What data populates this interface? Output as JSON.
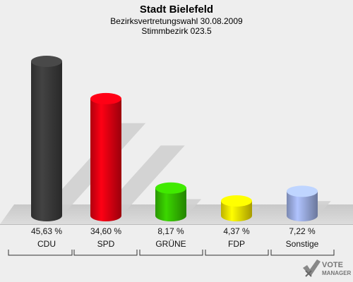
{
  "header": {
    "title": "Stadt Bielefeld",
    "subtitle": "Bezirksvertretungswahl 30.08.2009",
    "subtitle2": "Stimmbezirk 023.5"
  },
  "logo": {
    "text_top": "VOTE",
    "text_bottom": "MANAGER"
  },
  "chart_data": {
    "type": "bar",
    "style": "3d-cylinder",
    "title": "Stadt Bielefeld",
    "subtitle": "Bezirksvertretungswahl 30.08.2009 / Stimmbezirk 023.5",
    "categories": [
      "CDU",
      "SPD",
      "GRÜNE",
      "FDP",
      "Sonstige"
    ],
    "values": [
      45.63,
      34.6,
      8.17,
      4.37,
      7.22
    ],
    "value_labels": [
      "45,63 %",
      "34,60 %",
      "8,17 %",
      "4,37 %",
      "7,22 %"
    ],
    "colors": [
      "#3a3a3a",
      "#dd0011",
      "#33bb00",
      "#eedd00",
      "#99aadd"
    ],
    "ylim": [
      0,
      50
    ],
    "grid": false,
    "legend": "none"
  }
}
